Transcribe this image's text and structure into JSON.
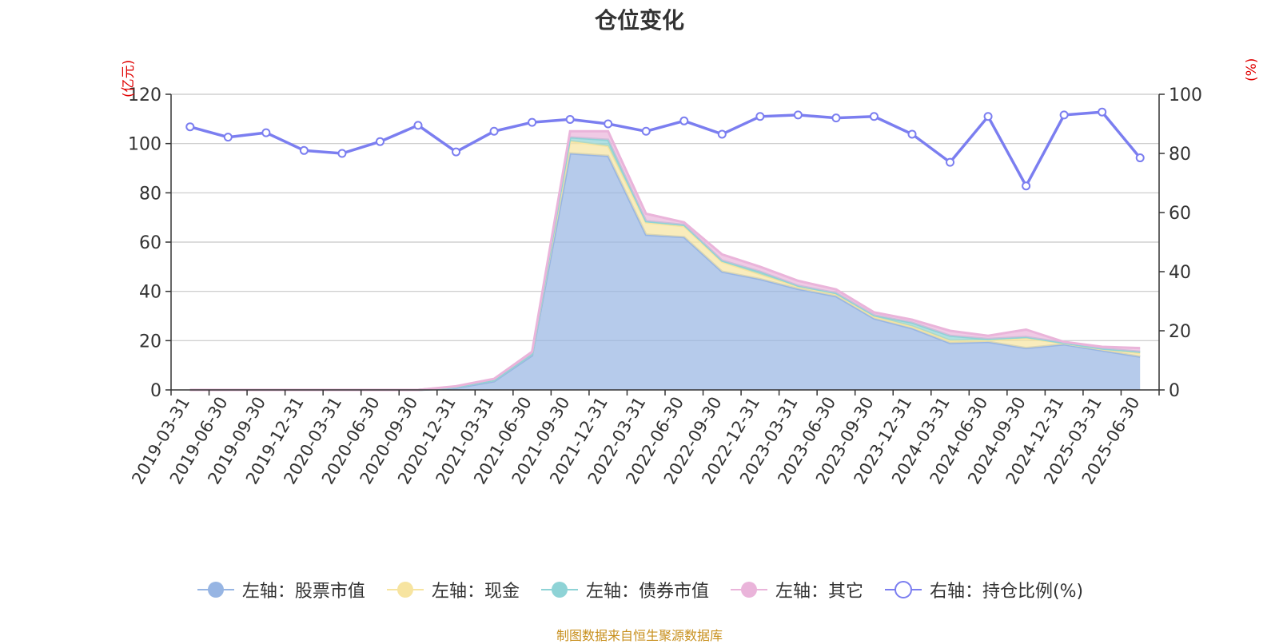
{
  "chart_data": {
    "type": "area",
    "title": "仓位变化",
    "categories": [
      "2019-03-31",
      "2019-06-30",
      "2019-09-30",
      "2019-12-31",
      "2020-03-31",
      "2020-06-30",
      "2020-09-30",
      "2020-12-31",
      "2021-03-31",
      "2021-06-30",
      "2021-09-30",
      "2021-12-31",
      "2022-03-31",
      "2022-06-30",
      "2022-09-30",
      "2022-12-31",
      "2023-03-31",
      "2023-06-30",
      "2023-09-30",
      "2023-12-31",
      "2024-03-31",
      "2024-06-30",
      "2024-09-30",
      "2024-12-31",
      "2025-03-31",
      "2025-06-30"
    ],
    "y_left": {
      "unit": "(亿元)",
      "ylim": [
        0,
        120
      ],
      "ticks": [
        "0",
        "20",
        "40",
        "60",
        "80",
        "100",
        "120"
      ]
    },
    "y_right": {
      "unit": "(%)",
      "ylim": [
        0,
        100
      ],
      "ticks": [
        "0",
        "20",
        "40",
        "60",
        "80",
        "100"
      ]
    },
    "grid": true,
    "legend_position": "bottom",
    "series": [
      {
        "name": "左轴：股票市值",
        "axis": "left",
        "stack": true,
        "color": "#97b5e3",
        "values": [
          0,
          0,
          0,
          0,
          0,
          0,
          0,
          0.8,
          3.5,
          14,
          96,
          95,
          63,
          62,
          48,
          45,
          41,
          38,
          29,
          25,
          19,
          19.5,
          17,
          18.5,
          16,
          13.5
        ]
      },
      {
        "name": "左轴：现金",
        "axis": "left",
        "stack": true,
        "color": "#f7e4a0",
        "values": [
          0,
          0,
          0,
          0,
          0,
          0,
          0,
          0.4,
          0.5,
          0.6,
          5,
          4,
          5,
          4.5,
          4,
          2,
          1,
          1,
          0.8,
          0.8,
          1,
          0.7,
          4,
          0.4,
          0.6,
          1.5
        ]
      },
      {
        "name": "左轴：债券市值",
        "axis": "left",
        "stack": true,
        "color": "#8ed3d6",
        "values": [
          0,
          0,
          0,
          0,
          0,
          0,
          0,
          0,
          0,
          0,
          1.5,
          2.5,
          0.5,
          0.5,
          0.5,
          1,
          0.3,
          0.3,
          0.5,
          1.5,
          2,
          0.5,
          0.5,
          0.2,
          0.2,
          0.5
        ]
      },
      {
        "name": "左轴：其它",
        "axis": "left",
        "stack": true,
        "color": "#eab4da",
        "values": [
          0,
          0,
          0,
          0,
          0,
          0,
          0,
          0.3,
          0.5,
          0.9,
          2.5,
          3.5,
          3,
          1,
          2.5,
          2,
          2,
          1.5,
          1.2,
          1.2,
          2,
          1.3,
          3,
          0.4,
          0.7,
          1.5
        ]
      },
      {
        "name": "右轴：持仓比例(%)",
        "axis": "right",
        "type": "line",
        "color": "#7b7ef0",
        "values": [
          89,
          85.5,
          87,
          81,
          80,
          84,
          89.5,
          80.5,
          87.5,
          90.5,
          91.5,
          90,
          87.5,
          91,
          86.5,
          92.5,
          93,
          92,
          92.5,
          86.5,
          77,
          92.5,
          69,
          93,
          94,
          78.5
        ]
      }
    ]
  },
  "footer": {
    "source": "制图数据来自恒生聚源数据库"
  }
}
